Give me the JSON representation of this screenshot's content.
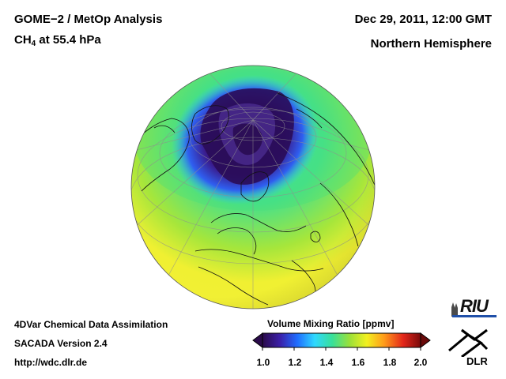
{
  "header": {
    "title_line1": "GOME−2 / MetOp Analysis",
    "species": "CH",
    "species_sub": "4",
    "level": " at 55.4 hPa",
    "datetime": "Dec 29, 2011, 12:00 GMT",
    "region": "Northern Hemisphere"
  },
  "footer": {
    "line1": "4DVar Chemical Data Assimilation",
    "line2": "SACADA Version 2.4",
    "line3": "http://wdc.dlr.de"
  },
  "colorbar": {
    "title": "Volume Mixing Ratio [ppmv]",
    "ticks": [
      "1.0",
      "1.2",
      "1.4",
      "1.6",
      "1.8",
      "2.0"
    ],
    "range": [
      1.0,
      2.0
    ],
    "colors": [
      "#2a0a4a",
      "#3b1fa8",
      "#1f6dff",
      "#2fd8ff",
      "#38e09a",
      "#9ae03a",
      "#f2f020",
      "#ff9a1a",
      "#e3261a",
      "#7a0a0a"
    ]
  },
  "map": {
    "projection": "orthographic",
    "hemisphere": "north",
    "colors": {
      "low": "#2a0f5e",
      "mid_low": "#2a5dff",
      "mid": "#3ee0d0",
      "mid_high": "#58e060",
      "high": "#f3f02e",
      "coast": "#111111",
      "grid": "#9a9a9a"
    }
  },
  "logos": {
    "riu": "RIU",
    "dlr": "DLR"
  }
}
